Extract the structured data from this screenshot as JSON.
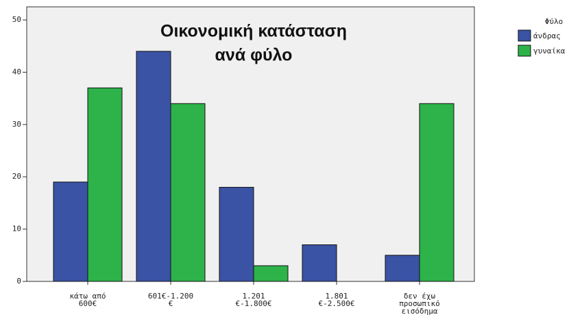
{
  "chart_data": {
    "type": "bar",
    "title": [
      "Οικονομική κατάσταση",
      "ανά φύλο"
    ],
    "categories": [
      [
        "κάτω από",
        "600€"
      ],
      [
        "601€-1.200",
        "€"
      ],
      [
        "1.201",
        "€-1.800€"
      ],
      [
        "1.801",
        "€-2.500€"
      ],
      [
        "δεν έχω",
        "προσωπικό",
        "εισόδημα"
      ]
    ],
    "legend_title": "Φύλο",
    "series": [
      {
        "name": "άνδρας",
        "color": "#3a53a4",
        "values": [
          19,
          44,
          18,
          7,
          5
        ]
      },
      {
        "name": "γυναίκα",
        "color": "#2db34a",
        "values": [
          37,
          34,
          3,
          0,
          34
        ]
      }
    ],
    "ylim": [
      0,
      52.5
    ],
    "yticks": [
      0,
      10,
      20,
      30,
      40,
      50
    ],
    "grid": false,
    "legend": "right"
  }
}
